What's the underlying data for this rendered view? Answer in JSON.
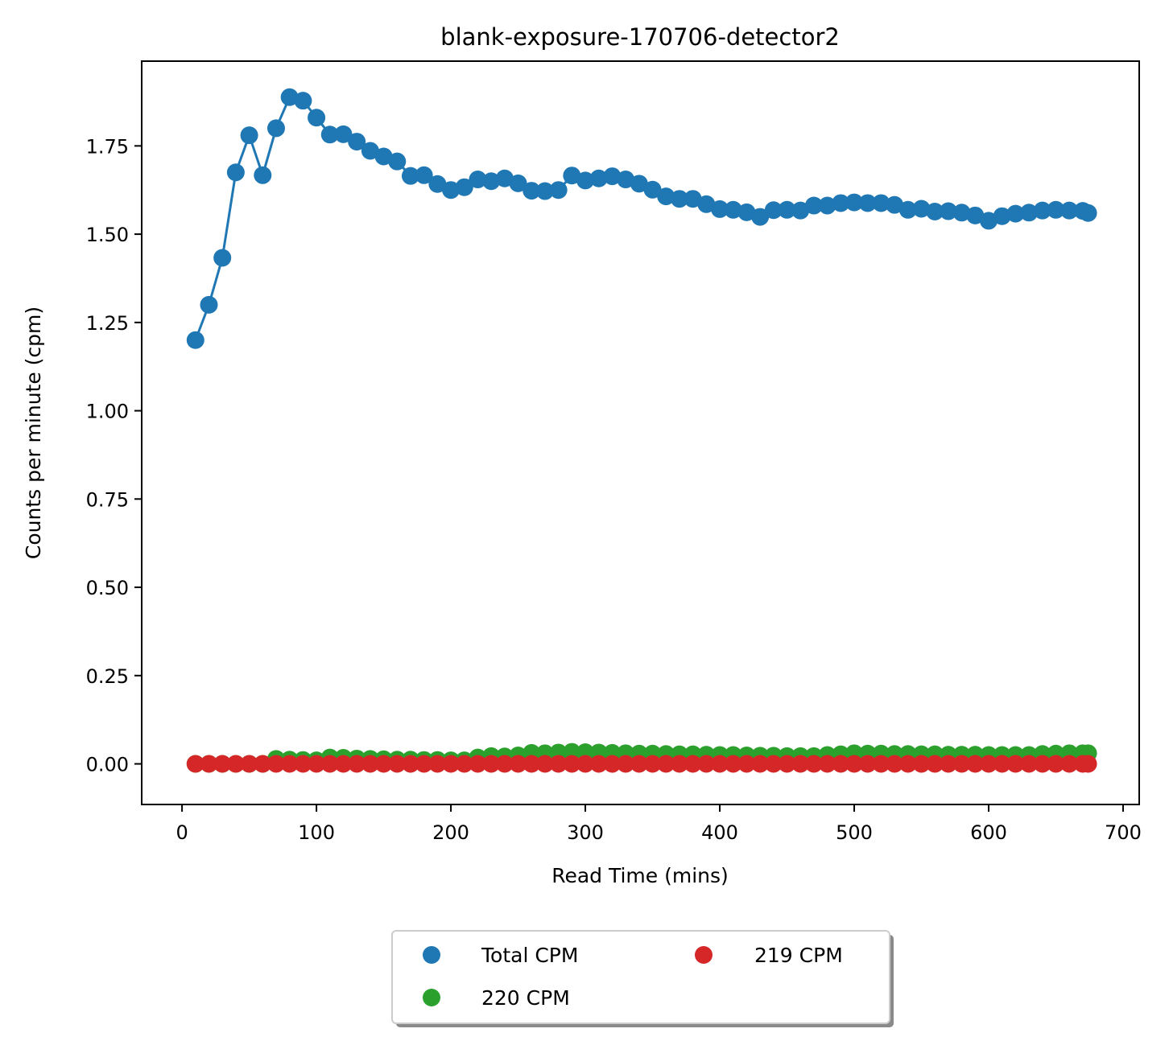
{
  "chart_data": {
    "type": "line",
    "title": "blank-exposure-170706-detector2",
    "xlabel": "Read Time (mins)",
    "ylabel": "Counts per minute (cpm)",
    "xlim": [
      -30,
      712
    ],
    "ylim": [
      -0.115,
      1.99
    ],
    "xticks": [
      0,
      100,
      200,
      300,
      400,
      500,
      600,
      700
    ],
    "xtick_labels": [
      "0",
      "100",
      "200",
      "300",
      "400",
      "500",
      "600",
      "700"
    ],
    "yticks": [
      0.0,
      0.25,
      0.5,
      0.75,
      1.0,
      1.25,
      1.5,
      1.75
    ],
    "ytick_labels": [
      "0.00",
      "0.25",
      "0.50",
      "0.75",
      "1.00",
      "1.25",
      "1.50",
      "1.75"
    ],
    "grid": false,
    "legend": {
      "placement": "bottom-center, below axes",
      "columns": 2,
      "shadow": true
    },
    "x": [
      10,
      20,
      30,
      40,
      50,
      60,
      70,
      80,
      90,
      100,
      110,
      120,
      130,
      140,
      150,
      160,
      170,
      180,
      190,
      200,
      210,
      220,
      230,
      240,
      250,
      260,
      270,
      280,
      290,
      300,
      310,
      320,
      330,
      340,
      350,
      360,
      370,
      380,
      390,
      400,
      410,
      420,
      430,
      440,
      450,
      460,
      470,
      480,
      490,
      500,
      510,
      520,
      530,
      540,
      550,
      560,
      570,
      580,
      590,
      600,
      610,
      620,
      630,
      640,
      650,
      660,
      670,
      674
    ],
    "series": [
      {
        "name": "Total CPM",
        "color": "#1f77b4",
        "values": [
          1.2,
          1.3,
          1.433,
          1.675,
          1.78,
          1.667,
          1.8,
          1.888,
          1.878,
          1.83,
          1.782,
          1.783,
          1.762,
          1.736,
          1.72,
          1.706,
          1.665,
          1.667,
          1.642,
          1.625,
          1.633,
          1.655,
          1.65,
          1.658,
          1.644,
          1.623,
          1.622,
          1.625,
          1.666,
          1.652,
          1.658,
          1.664,
          1.655,
          1.643,
          1.626,
          1.607,
          1.6,
          1.6,
          1.585,
          1.571,
          1.569,
          1.562,
          1.549,
          1.568,
          1.569,
          1.567,
          1.581,
          1.581,
          1.588,
          1.59,
          1.588,
          1.588,
          1.583,
          1.569,
          1.572,
          1.564,
          1.565,
          1.561,
          1.553,
          1.538,
          1.551,
          1.558,
          1.561,
          1.567,
          1.569,
          1.567,
          1.566,
          1.56
        ]
      },
      {
        "name": "220 CPM",
        "color": "#2ca02c",
        "values": [
          0,
          0,
          0,
          0,
          0,
          0,
          0.014,
          0.012,
          0.011,
          0.01,
          0.018,
          0.017,
          0.015,
          0.014,
          0.013,
          0.012,
          0.012,
          0.011,
          0.011,
          0.01,
          0.01,
          0.018,
          0.022,
          0.021,
          0.024,
          0.031,
          0.03,
          0.032,
          0.034,
          0.033,
          0.032,
          0.031,
          0.03,
          0.029,
          0.029,
          0.028,
          0.027,
          0.027,
          0.026,
          0.025,
          0.025,
          0.024,
          0.023,
          0.023,
          0.022,
          0.022,
          0.022,
          0.025,
          0.027,
          0.03,
          0.029,
          0.029,
          0.028,
          0.028,
          0.027,
          0.027,
          0.026,
          0.026,
          0.026,
          0.025,
          0.025,
          0.025,
          0.025,
          0.028,
          0.029,
          0.03,
          0.03,
          0.03
        ]
      },
      {
        "name": "219 CPM",
        "color": "#d62728",
        "values": [
          0,
          0,
          0,
          0,
          0,
          0,
          0,
          0,
          0,
          0,
          0,
          0,
          0,
          0,
          0,
          0,
          0,
          0,
          0,
          0,
          0,
          0,
          0,
          0,
          0,
          0,
          0,
          0,
          0,
          0,
          0,
          0,
          0,
          0,
          0,
          0,
          0,
          0,
          0,
          0,
          0,
          0,
          0,
          0,
          0,
          0,
          0,
          0,
          0,
          0,
          0,
          0,
          0,
          0,
          0,
          0,
          0,
          0,
          0,
          0,
          0,
          0,
          0,
          0,
          0,
          0,
          0,
          0
        ]
      }
    ]
  }
}
